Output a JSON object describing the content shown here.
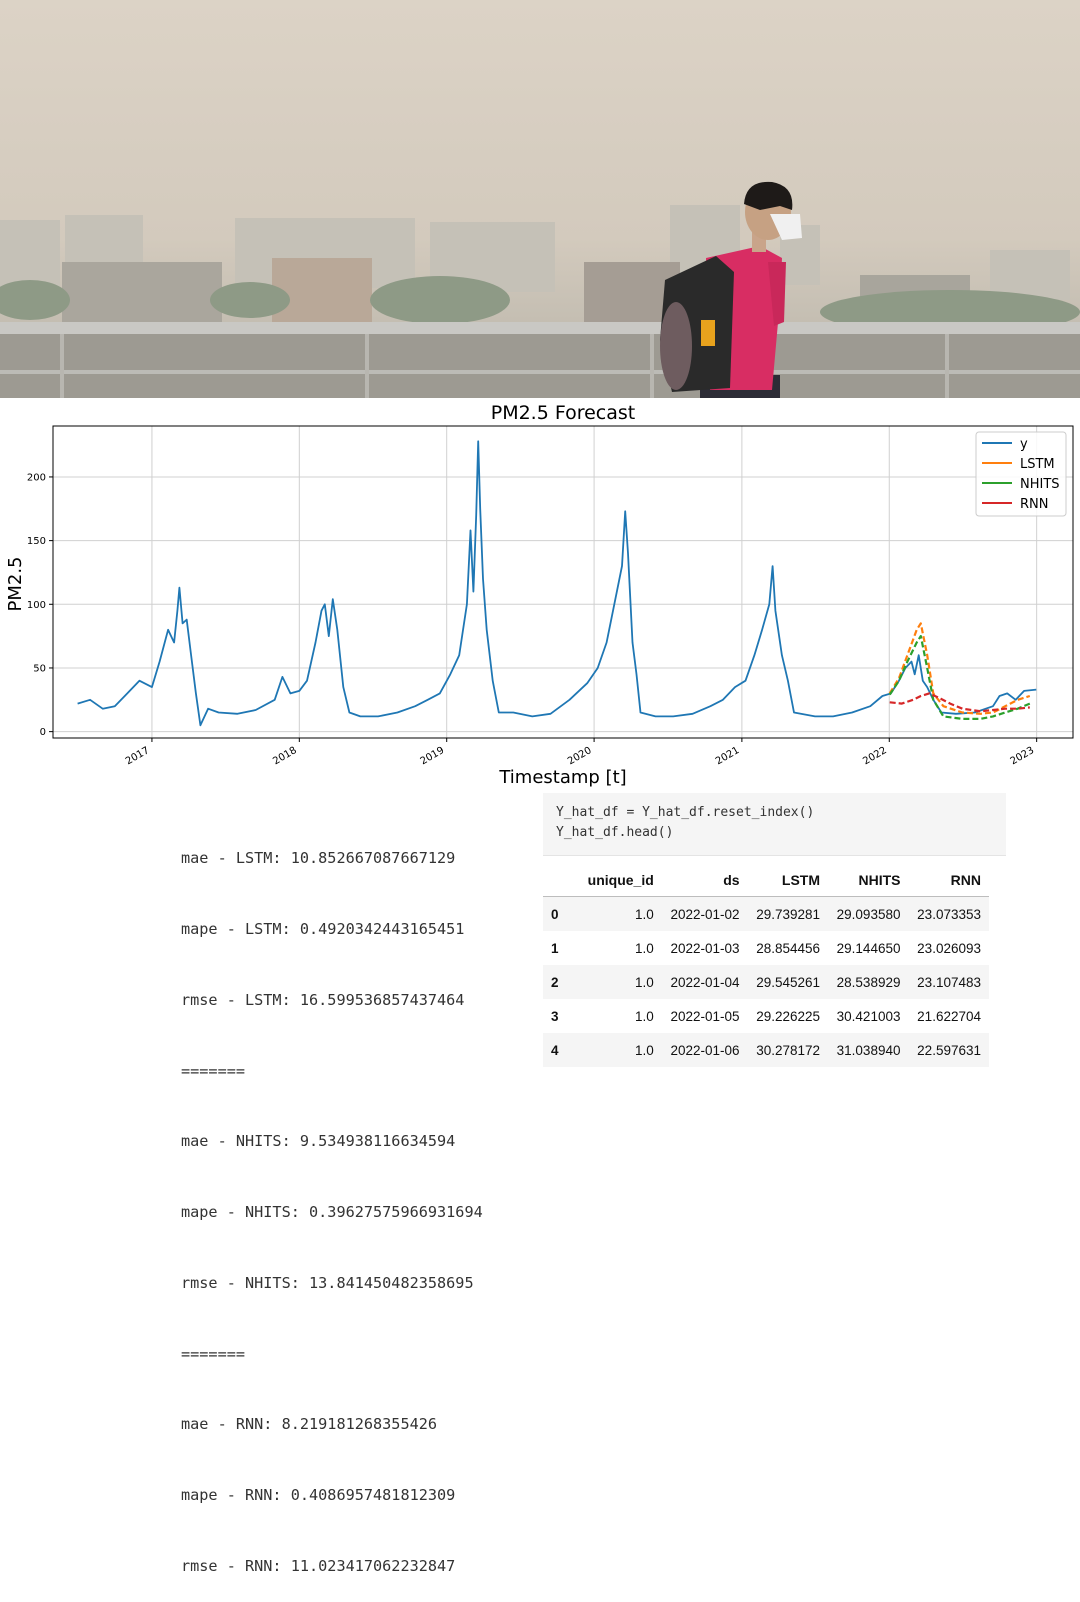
{
  "chart_data": {
    "type": "line",
    "title": "PM2.5 Forecast",
    "xlabel": "Timestamp [t]",
    "ylabel": "PM2.5",
    "x_tick_labels": [
      "2017",
      "2018",
      "2019",
      "2020",
      "2021",
      "2022",
      "2023"
    ],
    "y_tick_labels": [
      "0",
      "50",
      "100",
      "150",
      "200"
    ],
    "xlim": [
      "2016-05-01",
      "2023-04-01"
    ],
    "ylim": [
      -5,
      240
    ],
    "grid": true,
    "legend_position": "top-right",
    "series": [
      {
        "name": "y",
        "color": "#1f77b4",
        "style": "solid",
        "points": [
          [
            "2016-07-01",
            22
          ],
          [
            "2016-08-01",
            25
          ],
          [
            "2016-09-01",
            18
          ],
          [
            "2016-10-01",
            20
          ],
          [
            "2016-11-01",
            30
          ],
          [
            "2016-12-01",
            40
          ],
          [
            "2017-01-01",
            35
          ],
          [
            "2017-01-20",
            55
          ],
          [
            "2017-02-10",
            80
          ],
          [
            "2017-02-25",
            70
          ],
          [
            "2017-03-05",
            95
          ],
          [
            "2017-03-10",
            113
          ],
          [
            "2017-03-18",
            85
          ],
          [
            "2017-03-28",
            88
          ],
          [
            "2017-04-08",
            60
          ],
          [
            "2017-04-20",
            30
          ],
          [
            "2017-05-01",
            5
          ],
          [
            "2017-05-20",
            18
          ],
          [
            "2017-06-15",
            15
          ],
          [
            "2017-08-01",
            14
          ],
          [
            "2017-09-15",
            17
          ],
          [
            "2017-11-01",
            25
          ],
          [
            "2017-11-20",
            43
          ],
          [
            "2017-12-10",
            30
          ],
          [
            "2018-01-01",
            32
          ],
          [
            "2018-01-20",
            40
          ],
          [
            "2018-02-10",
            70
          ],
          [
            "2018-02-25",
            95
          ],
          [
            "2018-03-05",
            100
          ],
          [
            "2018-03-15",
            75
          ],
          [
            "2018-03-25",
            104
          ],
          [
            "2018-04-05",
            80
          ],
          [
            "2018-04-20",
            35
          ],
          [
            "2018-05-05",
            15
          ],
          [
            "2018-06-01",
            12
          ],
          [
            "2018-07-15",
            12
          ],
          [
            "2018-09-01",
            15
          ],
          [
            "2018-10-15",
            20
          ],
          [
            "2018-11-15",
            25
          ],
          [
            "2018-12-15",
            30
          ],
          [
            "2019-01-10",
            45
          ],
          [
            "2019-02-01",
            60
          ],
          [
            "2019-02-20",
            100
          ],
          [
            "2019-03-01",
            158
          ],
          [
            "2019-03-08",
            110
          ],
          [
            "2019-03-15",
            170
          ],
          [
            "2019-03-20",
            228
          ],
          [
            "2019-03-25",
            175
          ],
          [
            "2019-04-01",
            120
          ],
          [
            "2019-04-10",
            80
          ],
          [
            "2019-04-25",
            40
          ],
          [
            "2019-05-10",
            15
          ],
          [
            "2019-06-15",
            15
          ],
          [
            "2019-08-01",
            12
          ],
          [
            "2019-09-15",
            14
          ],
          [
            "2019-11-01",
            25
          ],
          [
            "2019-12-15",
            38
          ],
          [
            "2020-01-10",
            50
          ],
          [
            "2020-02-01",
            70
          ],
          [
            "2020-02-20",
            100
          ],
          [
            "2020-03-10",
            130
          ],
          [
            "2020-03-18",
            173
          ],
          [
            "2020-03-25",
            140
          ],
          [
            "2020-04-05",
            70
          ],
          [
            "2020-04-15",
            45
          ],
          [
            "2020-04-25",
            15
          ],
          [
            "2020-06-01",
            12
          ],
          [
            "2020-07-15",
            12
          ],
          [
            "2020-09-01",
            14
          ],
          [
            "2020-10-15",
            20
          ],
          [
            "2020-11-15",
            25
          ],
          [
            "2020-12-15",
            35
          ],
          [
            "2021-01-10",
            40
          ],
          [
            "2021-02-01",
            60
          ],
          [
            "2021-02-20",
            80
          ],
          [
            "2021-03-10",
            100
          ],
          [
            "2021-03-18",
            130
          ],
          [
            "2021-03-25",
            95
          ],
          [
            "2021-04-10",
            60
          ],
          [
            "2021-04-25",
            40
          ],
          [
            "2021-05-10",
            15
          ],
          [
            "2021-07-01",
            12
          ],
          [
            "2021-08-15",
            12
          ],
          [
            "2021-10-01",
            15
          ],
          [
            "2021-11-15",
            20
          ],
          [
            "2021-12-15",
            28
          ],
          [
            "2022-01-05",
            30
          ],
          [
            "2022-01-25",
            40
          ],
          [
            "2022-02-10",
            50
          ],
          [
            "2022-02-25",
            55
          ],
          [
            "2022-03-05",
            45
          ],
          [
            "2022-03-15",
            60
          ],
          [
            "2022-03-25",
            40
          ],
          [
            "2022-04-05",
            35
          ],
          [
            "2022-04-20",
            25
          ],
          [
            "2022-05-10",
            15
          ],
          [
            "2022-06-15",
            14
          ],
          [
            "2022-08-01",
            15
          ],
          [
            "2022-09-15",
            20
          ],
          [
            "2022-10-01",
            28
          ],
          [
            "2022-10-20",
            30
          ],
          [
            "2022-11-10",
            25
          ],
          [
            "2022-12-01",
            32
          ],
          [
            "2022-12-31",
            33
          ]
        ]
      },
      {
        "name": "LSTM",
        "color": "#ff7f0e",
        "style": "dashed",
        "points": [
          [
            "2022-01-02",
            30
          ],
          [
            "2022-01-25",
            42
          ],
          [
            "2022-02-15",
            60
          ],
          [
            "2022-03-10",
            80
          ],
          [
            "2022-03-20",
            85
          ],
          [
            "2022-04-05",
            60
          ],
          [
            "2022-04-20",
            30
          ],
          [
            "2022-05-15",
            20
          ],
          [
            "2022-07-01",
            15
          ],
          [
            "2022-08-15",
            14
          ],
          [
            "2022-09-15",
            15
          ],
          [
            "2022-10-15",
            20
          ],
          [
            "2022-11-15",
            25
          ],
          [
            "2022-12-15",
            28
          ]
        ]
      },
      {
        "name": "NHITS",
        "color": "#2ca02c",
        "style": "dashed",
        "points": [
          [
            "2022-01-02",
            29
          ],
          [
            "2022-01-25",
            40
          ],
          [
            "2022-02-15",
            55
          ],
          [
            "2022-03-10",
            70
          ],
          [
            "2022-03-20",
            75
          ],
          [
            "2022-04-05",
            50
          ],
          [
            "2022-04-20",
            25
          ],
          [
            "2022-05-15",
            12
          ],
          [
            "2022-07-01",
            10
          ],
          [
            "2022-08-15",
            10
          ],
          [
            "2022-09-15",
            12
          ],
          [
            "2022-10-15",
            15
          ],
          [
            "2022-11-15",
            18
          ],
          [
            "2022-12-15",
            22
          ]
        ]
      },
      {
        "name": "RNN",
        "color": "#d62728",
        "style": "dashed",
        "points": [
          [
            "2022-01-02",
            23
          ],
          [
            "2022-02-01",
            22
          ],
          [
            "2022-03-01",
            25
          ],
          [
            "2022-03-20",
            28
          ],
          [
            "2022-04-10",
            30
          ],
          [
            "2022-05-01",
            27
          ],
          [
            "2022-06-01",
            22
          ],
          [
            "2022-07-01",
            18
          ],
          [
            "2022-08-15",
            16
          ],
          [
            "2022-09-15",
            17
          ],
          [
            "2022-10-15",
            18
          ],
          [
            "2022-11-15",
            18
          ],
          [
            "2022-12-15",
            19
          ]
        ]
      }
    ]
  },
  "metrics": [
    "mae - LSTM: 10.852667087667129",
    "mape - LSTM: 0.4920342443165451",
    "rmse - LSTM: 16.599536857437464",
    "=======",
    "mae - NHITS: 9.534938116634594",
    "mape - NHITS: 0.39627575966931694",
    "rmse - NHITS: 13.841450482358695",
    "=======",
    "mae - RNN: 8.219181268355426",
    "mape - RNN: 0.4086957481812309",
    "rmse - RNN: 11.023417062232847"
  ],
  "code": [
    "Y_hat_df = Y_hat_df.reset_index()",
    "Y_hat_df.head()"
  ],
  "table": {
    "columns": [
      "",
      "unique_id",
      "ds",
      "LSTM",
      "NHITS",
      "RNN"
    ],
    "rows": [
      [
        "0",
        "1.0",
        "2022-01-02",
        "29.739281",
        "29.093580",
        "23.073353"
      ],
      [
        "1",
        "1.0",
        "2022-01-03",
        "28.854456",
        "29.144650",
        "23.026093"
      ],
      [
        "2",
        "1.0",
        "2022-01-04",
        "29.545261",
        "28.538929",
        "23.107483"
      ],
      [
        "3",
        "1.0",
        "2022-01-05",
        "29.226225",
        "30.421003",
        "21.622704"
      ],
      [
        "4",
        "1.0",
        "2022-01-06",
        "30.278172",
        "31.038940",
        "22.597631"
      ]
    ]
  }
}
